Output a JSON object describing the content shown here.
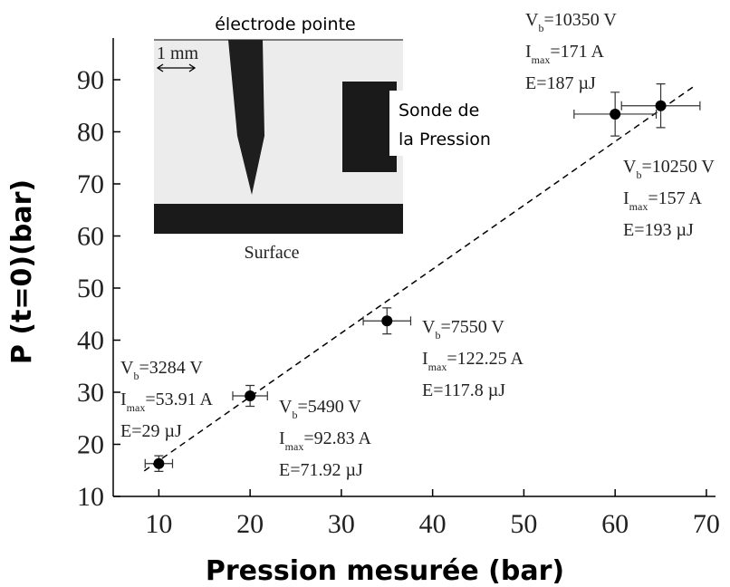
{
  "chart_data": {
    "type": "scatter",
    "x_label": "Pression mesurée (bar)",
    "y_label": "P (t=0)(bar)",
    "xlim": [
      5,
      71
    ],
    "ylim": [
      10,
      98
    ],
    "xticks": [
      10,
      20,
      30,
      40,
      50,
      60,
      70
    ],
    "yticks": [
      10,
      20,
      30,
      40,
      50,
      60,
      70,
      80,
      90
    ],
    "series": [
      {
        "color": "#000000",
        "x": [
          10,
          20,
          35,
          60,
          65
        ],
        "values": [
          16.3,
          29.3,
          43.7,
          83.4,
          85
        ],
        "xerr": [
          1.5,
          1.9,
          2.6,
          4.5,
          4.3
        ],
        "yerr": [
          1.5,
          2,
          2.5,
          4.2,
          4.2
        ]
      }
    ],
    "fit_line": {
      "x": [
        8.4,
        68.7
      ],
      "y": [
        14.9,
        88.8
      ]
    },
    "annotations": [
      {
        "lines": [
          [
            "V",
            "b",
            "=3284 V"
          ],
          [
            "I",
            "max",
            "=53.91 A"
          ],
          [
            "E=29 µJ"
          ]
        ]
      },
      {
        "lines": [
          [
            "V",
            "b",
            "=5490 V"
          ],
          [
            "I",
            "max",
            "=92.83 A"
          ],
          [
            "E=71.92 µJ"
          ]
        ]
      },
      {
        "lines": [
          [
            "V",
            "b",
            "=7550 V"
          ],
          [
            "I",
            "max",
            "=122.25 A"
          ],
          [
            "E=117.8 µJ"
          ]
        ]
      },
      {
        "lines": [
          [
            "V",
            "b",
            "=10350 V"
          ],
          [
            "I",
            "max",
            "=171 A"
          ],
          [
            "E=187 µJ"
          ]
        ]
      },
      {
        "lines": [
          [
            "V",
            "b",
            "=10250 V"
          ],
          [
            "I",
            "max",
            "=157 A"
          ],
          [
            "E=193 µJ"
          ]
        ]
      }
    ],
    "inset": {
      "top_label": "électrode pointe",
      "scale": "1 mm",
      "probe_label": [
        "Sonde de",
        "la Pression"
      ],
      "surface_label": "Surface"
    }
  }
}
